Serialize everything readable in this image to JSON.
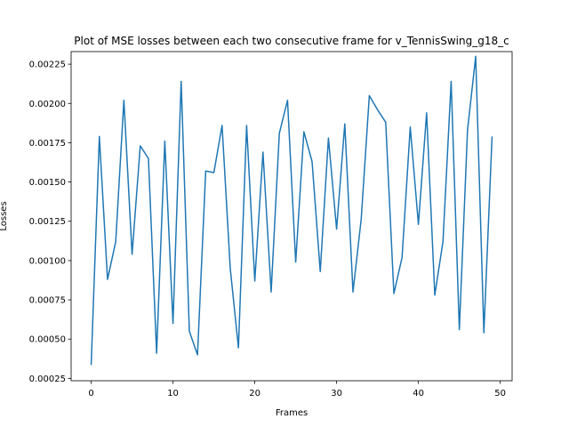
{
  "chart_data": {
    "type": "line",
    "title": "Plot of MSE losses between each two consecutive frame for v_TennisSwing_g18_c",
    "xlabel": "Frames",
    "ylabel": "Losses",
    "xlim": [
      -2.45,
      51.45
    ],
    "ylim": [
      0.000235,
      0.00233
    ],
    "xticks": [
      0,
      10,
      20,
      30,
      40,
      50
    ],
    "yticks": [
      0.00025,
      0.0005,
      0.00075,
      0.001,
      0.00125,
      0.0015,
      0.00175,
      0.002,
      0.00225
    ],
    "ytick_labels": [
      "0.00025",
      "0.00050",
      "0.00075",
      "0.00100",
      "0.00125",
      "0.00150",
      "0.00175",
      "0.00200",
      "0.00225"
    ],
    "grid": false,
    "series": [
      {
        "color": "#1f77b4",
        "x": [
          0,
          1,
          2,
          3,
          4,
          5,
          6,
          7,
          8,
          9,
          10,
          11,
          12,
          13,
          14,
          15,
          16,
          17,
          18,
          19,
          20,
          21,
          22,
          23,
          24,
          25,
          26,
          27,
          28,
          29,
          30,
          31,
          32,
          33,
          34,
          35,
          36,
          37,
          38,
          39,
          40,
          41,
          42,
          43,
          44,
          45,
          46,
          47,
          48,
          49
        ],
        "values": [
          0.000335,
          0.00179,
          0.00088,
          0.00112,
          0.00202,
          0.00104,
          0.00173,
          0.00165,
          0.00041,
          0.00176,
          0.0006,
          0.00214,
          0.00055,
          0.0004,
          0.00157,
          0.00156,
          0.00186,
          0.00095,
          0.000445,
          0.00186,
          0.00087,
          0.00169,
          0.0008,
          0.00181,
          0.00202,
          0.00099,
          0.00182,
          0.00163,
          0.00093,
          0.00178,
          0.0012,
          0.00187,
          0.0008,
          0.00126,
          0.00205,
          0.00196,
          0.00188,
          0.00079,
          0.00102,
          0.00185,
          0.00123,
          0.00194,
          0.00078,
          0.00112,
          0.00214,
          0.00056,
          0.00183,
          0.0023,
          0.00054,
          0.00179
        ]
      }
    ]
  }
}
